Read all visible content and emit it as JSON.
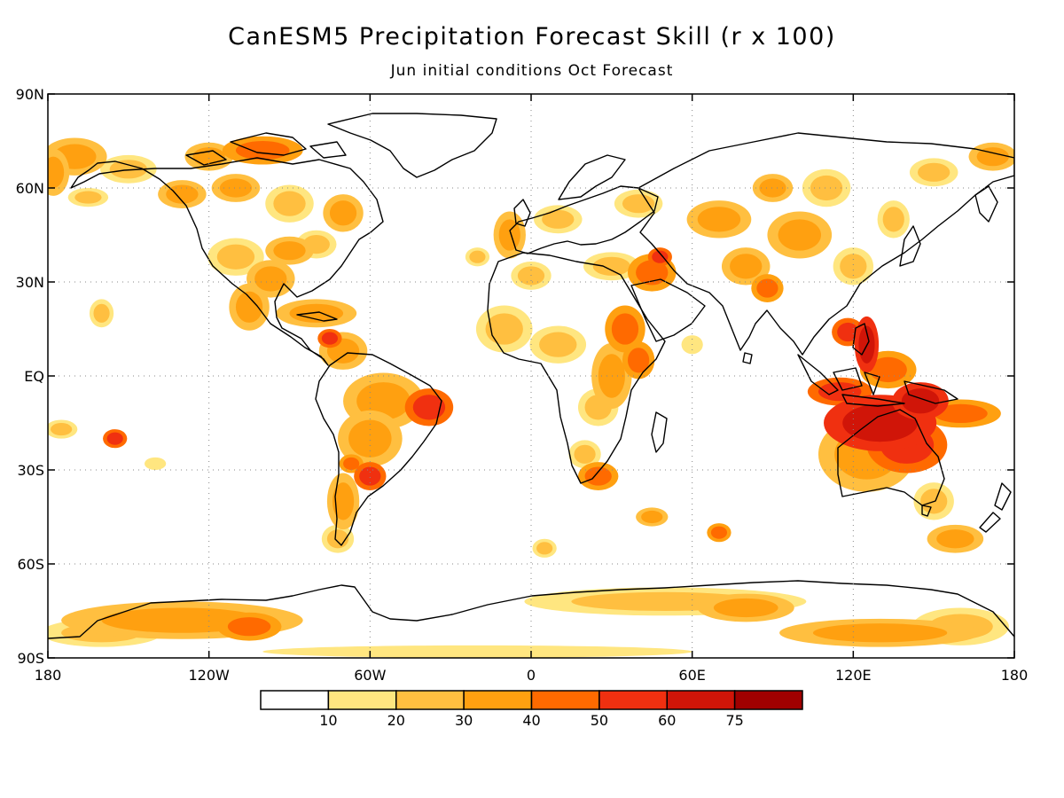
{
  "title": "CanESM5 Precipitation Forecast Skill (r x 100)",
  "subtitle": "Jun initial conditions  Oct Forecast",
  "map": {
    "projection": "cylindrical-equidistant",
    "lon_range": [
      -180,
      180
    ],
    "lat_range": [
      -90,
      90
    ],
    "grid_lines": "dotted",
    "lat_ticks": [
      {
        "value": 90,
        "label": "90N"
      },
      {
        "value": 60,
        "label": "60N"
      },
      {
        "value": 30,
        "label": "30N"
      },
      {
        "value": 0,
        "label": "EQ"
      },
      {
        "value": -30,
        "label": "30S"
      },
      {
        "value": -60,
        "label": "60S"
      },
      {
        "value": -90,
        "label": "90S"
      }
    ],
    "lon_ticks": [
      {
        "value": -180,
        "label": "180"
      },
      {
        "value": -120,
        "label": "120W"
      },
      {
        "value": -60,
        "label": "60W"
      },
      {
        "value": 0,
        "label": "0"
      },
      {
        "value": 60,
        "label": "60E"
      },
      {
        "value": 120,
        "label": "120E"
      },
      {
        "value": 180,
        "label": "180"
      }
    ]
  },
  "colorbar": {
    "placement": "bottom",
    "bins": [
      {
        "color": "#ffffff"
      },
      {
        "color": "#ffe680"
      },
      {
        "color": "#ffbf40"
      },
      {
        "color": "#ffa010"
      },
      {
        "color": "#ff6a00"
      },
      {
        "color": "#f03010"
      },
      {
        "color": "#d01508"
      },
      {
        "color": "#a00000"
      }
    ],
    "labels": [
      "10",
      "20",
      "30",
      "40",
      "50",
      "60",
      "75"
    ]
  },
  "skill_regions": [
    {
      "lon": 130,
      "lat": -15,
      "rx": 14,
      "ry": 6,
      "level": 6
    },
    {
      "lon": 145,
      "lat": -8,
      "rx": 7,
      "ry": 4,
      "level": 6
    },
    {
      "lon": 125,
      "lat": 10,
      "rx": 3,
      "ry": 6,
      "level": 6
    },
    {
      "lon": 118,
      "lat": 14,
      "rx": 4,
      "ry": 3,
      "level": 5
    },
    {
      "lon": 115,
      "lat": -5,
      "rx": 8,
      "ry": 3,
      "level": 5
    },
    {
      "lon": 140,
      "lat": -22,
      "rx": 10,
      "ry": 6,
      "level": 5
    },
    {
      "lon": 125,
      "lat": -25,
      "rx": 12,
      "ry": 8,
      "level": 3
    },
    {
      "lon": 160,
      "lat": -12,
      "rx": 10,
      "ry": 3,
      "level": 4
    },
    {
      "lon": 133,
      "lat": 2,
      "rx": 7,
      "ry": 4,
      "level": 4
    },
    {
      "lon": 158,
      "lat": -52,
      "rx": 7,
      "ry": 3,
      "level": 3
    },
    {
      "lon": 150,
      "lat": -40,
      "rx": 5,
      "ry": 4,
      "level": 2
    },
    {
      "lon": -38,
      "lat": -10,
      "rx": 6,
      "ry": 4,
      "level": 5
    },
    {
      "lon": -55,
      "lat": -8,
      "rx": 10,
      "ry": 6,
      "level": 3
    },
    {
      "lon": -60,
      "lat": -20,
      "rx": 8,
      "ry": 6,
      "level": 3
    },
    {
      "lon": -60,
      "lat": -32,
      "rx": 4,
      "ry": 3,
      "level": 5
    },
    {
      "lon": -67,
      "lat": -28,
      "rx": 3,
      "ry": 2,
      "level": 4
    },
    {
      "lon": -70,
      "lat": -40,
      "rx": 4,
      "ry": 6,
      "level": 3
    },
    {
      "lon": -72,
      "lat": -52,
      "rx": 4,
      "ry": 3,
      "level": 2
    },
    {
      "lon": -70,
      "lat": 8,
      "rx": 6,
      "ry": 4,
      "level": 3
    },
    {
      "lon": -75,
      "lat": 12,
      "rx": 3,
      "ry": 2,
      "level": 5
    },
    {
      "lon": -80,
      "lat": 20,
      "rx": 10,
      "ry": 3,
      "level": 3
    },
    {
      "lon": -105,
      "lat": 22,
      "rx": 5,
      "ry": 5,
      "level": 3
    },
    {
      "lon": -97,
      "lat": 31,
      "rx": 6,
      "ry": 4,
      "level": 3
    },
    {
      "lon": -110,
      "lat": 38,
      "rx": 7,
      "ry": 4,
      "level": 2
    },
    {
      "lon": -90,
      "lat": 40,
      "rx": 6,
      "ry": 3,
      "level": 3
    },
    {
      "lon": -80,
      "lat": 42,
      "rx": 5,
      "ry": 3,
      "level": 2
    },
    {
      "lon": -130,
      "lat": 58,
      "rx": 6,
      "ry": 3,
      "level": 3
    },
    {
      "lon": -110,
      "lat": 60,
      "rx": 6,
      "ry": 3,
      "level": 3
    },
    {
      "lon": -90,
      "lat": 55,
      "rx": 6,
      "ry": 4,
      "level": 2
    },
    {
      "lon": -70,
      "lat": 52,
      "rx": 5,
      "ry": 4,
      "level": 3
    },
    {
      "lon": -100,
      "lat": 72,
      "rx": 10,
      "ry": 3,
      "level": 4
    },
    {
      "lon": -120,
      "lat": 70,
      "rx": 6,
      "ry": 3,
      "level": 3
    },
    {
      "lon": -170,
      "lat": 70,
      "rx": 8,
      "ry": 4,
      "level": 3
    },
    {
      "lon": -178,
      "lat": 65,
      "rx": 4,
      "ry": 5,
      "level": 3
    },
    {
      "lon": -150,
      "lat": 66,
      "rx": 7,
      "ry": 3,
      "level": 2
    },
    {
      "lon": -165,
      "lat": 57,
      "rx": 5,
      "ry": 2,
      "level": 2
    },
    {
      "lon": -175,
      "lat": -17,
      "rx": 4,
      "ry": 2,
      "level": 2
    },
    {
      "lon": -155,
      "lat": -20,
      "rx": 3,
      "ry": 2,
      "level": 5
    },
    {
      "lon": -140,
      "lat": -28,
      "rx": 4,
      "ry": 2,
      "level": 1
    },
    {
      "lon": -160,
      "lat": 20,
      "rx": 3,
      "ry": 3,
      "level": 2
    },
    {
      "lon": -10,
      "lat": 15,
      "rx": 7,
      "ry": 5,
      "level": 2
    },
    {
      "lon": 10,
      "lat": 10,
      "rx": 7,
      "ry": 4,
      "level": 2
    },
    {
      "lon": 30,
      "lat": 0,
      "rx": 5,
      "ry": 7,
      "level": 3
    },
    {
      "lon": 35,
      "lat": 15,
      "rx": 5,
      "ry": 5,
      "level": 4
    },
    {
      "lon": 40,
      "lat": 5,
      "rx": 4,
      "ry": 4,
      "level": 4
    },
    {
      "lon": 25,
      "lat": -10,
      "rx": 5,
      "ry": 4,
      "level": 2
    },
    {
      "lon": 25,
      "lat": -32,
      "rx": 5,
      "ry": 3,
      "level": 4
    },
    {
      "lon": 20,
      "lat": -25,
      "rx": 4,
      "ry": 3,
      "level": 2
    },
    {
      "lon": 45,
      "lat": 33,
      "rx": 6,
      "ry": 4,
      "level": 4
    },
    {
      "lon": 48,
      "lat": 38,
      "rx": 3,
      "ry": 2,
      "level": 5
    },
    {
      "lon": 30,
      "lat": 35,
      "rx": 7,
      "ry": 3,
      "level": 2
    },
    {
      "lon": 0,
      "lat": 32,
      "rx": 5,
      "ry": 3,
      "level": 2
    },
    {
      "lon": 10,
      "lat": 50,
      "rx": 6,
      "ry": 3,
      "level": 2
    },
    {
      "lon": -8,
      "lat": 45,
      "rx": 4,
      "ry": 5,
      "level": 3
    },
    {
      "lon": 40,
      "lat": 55,
      "rx": 6,
      "ry": 3,
      "level": 2
    },
    {
      "lon": 70,
      "lat": 50,
      "rx": 8,
      "ry": 4,
      "level": 3
    },
    {
      "lon": 80,
      "lat": 35,
      "rx": 6,
      "ry": 4,
      "level": 3
    },
    {
      "lon": 88,
      "lat": 28,
      "rx": 4,
      "ry": 3,
      "level": 4
    },
    {
      "lon": 100,
      "lat": 45,
      "rx": 8,
      "ry": 5,
      "level": 3
    },
    {
      "lon": 110,
      "lat": 60,
      "rx": 6,
      "ry": 4,
      "level": 2
    },
    {
      "lon": 90,
      "lat": 60,
      "rx": 5,
      "ry": 3,
      "level": 3
    },
    {
      "lon": 120,
      "lat": 35,
      "rx": 5,
      "ry": 4,
      "level": 2
    },
    {
      "lon": 135,
      "lat": 50,
      "rx": 4,
      "ry": 4,
      "level": 2
    },
    {
      "lon": 150,
      "lat": 65,
      "rx": 6,
      "ry": 3,
      "level": 2
    },
    {
      "lon": 172,
      "lat": 70,
      "rx": 6,
      "ry": 3,
      "level": 3
    },
    {
      "lon": 60,
      "lat": 10,
      "rx": 4,
      "ry": 3,
      "level": 1
    },
    {
      "lon": 45,
      "lat": -45,
      "rx": 4,
      "ry": 2,
      "level": 3
    },
    {
      "lon": 70,
      "lat": -50,
      "rx": 3,
      "ry": 2,
      "level": 4
    },
    {
      "lon": 5,
      "lat": -55,
      "rx": 3,
      "ry": 2,
      "level": 2
    },
    {
      "lon": -20,
      "lat": 38,
      "rx": 3,
      "ry": 2,
      "level": 2
    },
    {
      "lon": -130,
      "lat": -78,
      "rx": 30,
      "ry": 4,
      "level": 3
    },
    {
      "lon": -105,
      "lat": -80,
      "rx": 8,
      "ry": 3,
      "level": 4
    },
    {
      "lon": -160,
      "lat": -82,
      "rx": 15,
      "ry": 3,
      "level": 2
    },
    {
      "lon": 50,
      "lat": -72,
      "rx": 35,
      "ry": 3,
      "level": 2
    },
    {
      "lon": 80,
      "lat": -74,
      "rx": 12,
      "ry": 3,
      "level": 3
    },
    {
      "lon": 130,
      "lat": -82,
      "rx": 25,
      "ry": 3,
      "level": 3
    },
    {
      "lon": 160,
      "lat": -80,
      "rx": 12,
      "ry": 4,
      "level": 2
    },
    {
      "lon": -20,
      "lat": -88,
      "rx": 80,
      "ry": 2,
      "level": 1
    }
  ]
}
